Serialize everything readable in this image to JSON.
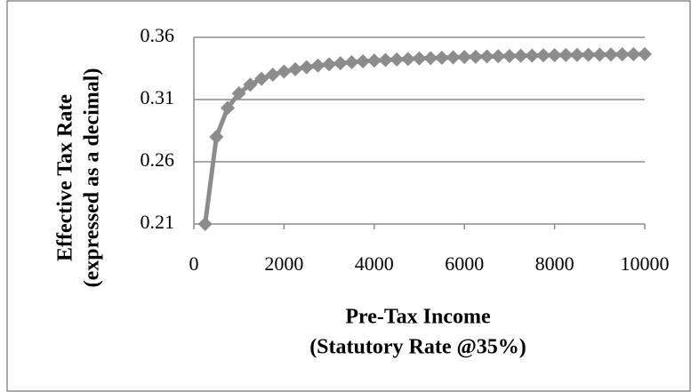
{
  "chart_data": {
    "type": "line",
    "xlabel": [
      "Pre-Tax Income",
      "(Statutory Rate @35%)"
    ],
    "ylabel": [
      "Effective Tax Rate",
      "(expressed as a decimal)"
    ],
    "x": [
      250,
      500,
      750,
      1000,
      1250,
      1500,
      1750,
      2000,
      2250,
      2500,
      2750,
      3000,
      3250,
      3500,
      3750,
      4000,
      4250,
      4500,
      4750,
      5000,
      5250,
      5500,
      5750,
      6000,
      6250,
      6500,
      6750,
      7000,
      7250,
      7500,
      7750,
      8000,
      8250,
      8500,
      8750,
      9000,
      9250,
      9500,
      9750,
      10000
    ],
    "series": [
      {
        "color": "#8c8c8c",
        "values": [
          0.21,
          0.28,
          0.3033,
          0.315,
          0.322,
          0.3267,
          0.33,
          0.3325,
          0.3344,
          0.336,
          0.3373,
          0.3383,
          0.3392,
          0.34,
          0.3407,
          0.3413,
          0.3418,
          0.3422,
          0.3426,
          0.343,
          0.3433,
          0.3436,
          0.3439,
          0.3442,
          0.3444,
          0.3446,
          0.3448,
          0.345,
          0.3452,
          0.3453,
          0.3455,
          0.3456,
          0.3458,
          0.3459,
          0.346,
          0.3461,
          0.3462,
          0.3463,
          0.3464,
          0.3465
        ]
      }
    ],
    "xlim": [
      0,
      10000
    ],
    "xticks": [
      0,
      2000,
      4000,
      6000,
      8000,
      10000
    ],
    "ylim": [
      0.21,
      0.36
    ],
    "yticks": [
      0.21,
      0.26,
      0.31,
      0.36
    ],
    "grid": true
  }
}
